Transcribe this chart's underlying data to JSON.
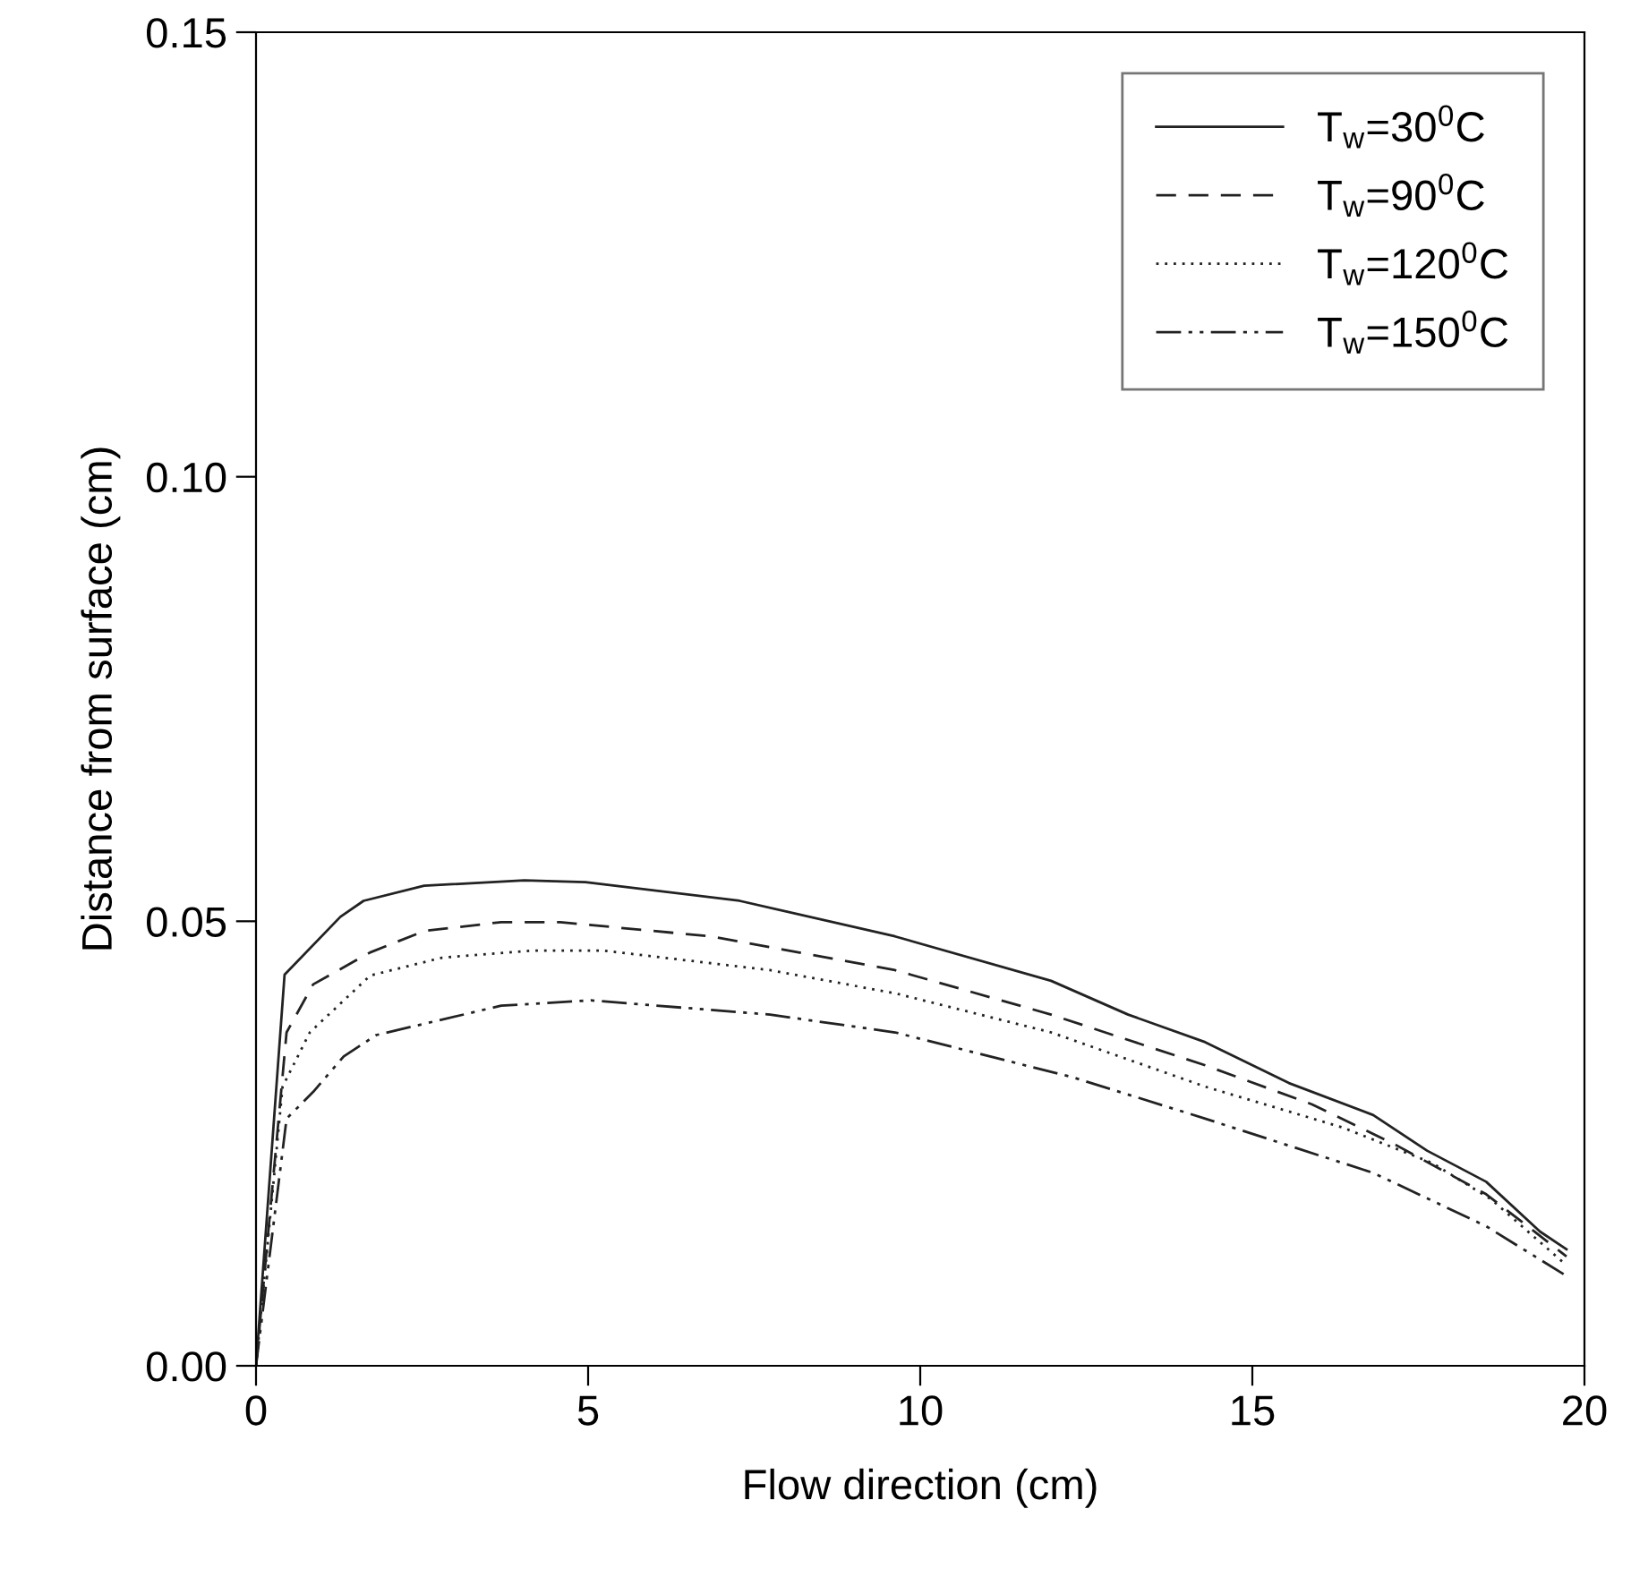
{
  "chart_data": {
    "type": "line",
    "xlabel": "Flow direction (cm)",
    "ylabel": "Distance from surface (cm)",
    "xlim": [
      0,
      20
    ],
    "ylim": [
      0,
      0.15
    ],
    "xticks": [
      0,
      5,
      10,
      15,
      20
    ],
    "yticks": [
      {
        "value": 0,
        "label": "0.00"
      },
      {
        "value": 0.05,
        "label": "0.05"
      },
      {
        "value": 0.1,
        "label": "0.10"
      },
      {
        "value": 0.15,
        "label": "0.15"
      }
    ],
    "grid": false,
    "legend": "top right",
    "marker": "none",
    "series": [
      {
        "name": "T$_{w}$=30$^{0}$C",
        "color": "#222222",
        "line_style": "solid",
        "x": [
          0,
          0.43,
          1.27,
          1.62,
          2.53,
          4.04,
          4.96,
          7.28,
          9.62,
          11.97,
          13.13,
          14.29,
          15.55,
          16.82,
          17.63,
          18.52,
          19.33,
          19.73
        ],
        "values": [
          0,
          0.044,
          0.0505,
          0.0523,
          0.054,
          0.0546,
          0.0544,
          0.0523,
          0.0483,
          0.0433,
          0.0395,
          0.0364,
          0.0318,
          0.0282,
          0.0242,
          0.0207,
          0.0151,
          0.0131
        ]
      },
      {
        "name": "T$_{w}$=90$^{0}$C",
        "color": "#222222",
        "line_style": "dashed",
        "x": [
          0,
          0.46,
          0.86,
          1.72,
          2.53,
          3.69,
          4.58,
          6.85,
          9.62,
          11.97,
          14.29,
          15.9,
          17.17,
          18.52,
          19.73
        ],
        "values": [
          0,
          0.0375,
          0.0429,
          0.0465,
          0.0489,
          0.0499,
          0.0499,
          0.0483,
          0.0445,
          0.0395,
          0.0338,
          0.0294,
          0.0248,
          0.0193,
          0.0123
        ]
      },
      {
        "name": "T$_{w}$=120$^{0}$C",
        "color": "#222222",
        "line_style": "dotted",
        "x": [
          0,
          0.4,
          0.81,
          1.72,
          2.8,
          4.15,
          5.23,
          7.74,
          9.62,
          11.97,
          14.29,
          16.36,
          17.71,
          18.6,
          19.73
        ],
        "values": [
          0,
          0.0314,
          0.0375,
          0.0439,
          0.0459,
          0.0467,
          0.0467,
          0.0445,
          0.0419,
          0.0375,
          0.0314,
          0.0268,
          0.0228,
          0.0187,
          0.0113
        ]
      },
      {
        "name": "T$_{w}$=150$^{0}$C",
        "color": "#222222",
        "line_style": "dashdot",
        "x": [
          0,
          0.46,
          0.86,
          1.32,
          1.81,
          3.69,
          5.04,
          7.74,
          9.62,
          12.32,
          14.29,
          16.82,
          18.52,
          19.73
        ],
        "values": [
          0,
          0.0278,
          0.0308,
          0.0348,
          0.0372,
          0.0405,
          0.0411,
          0.0395,
          0.0375,
          0.0324,
          0.0278,
          0.0217,
          0.0157,
          0.0101
        ]
      }
    ]
  }
}
